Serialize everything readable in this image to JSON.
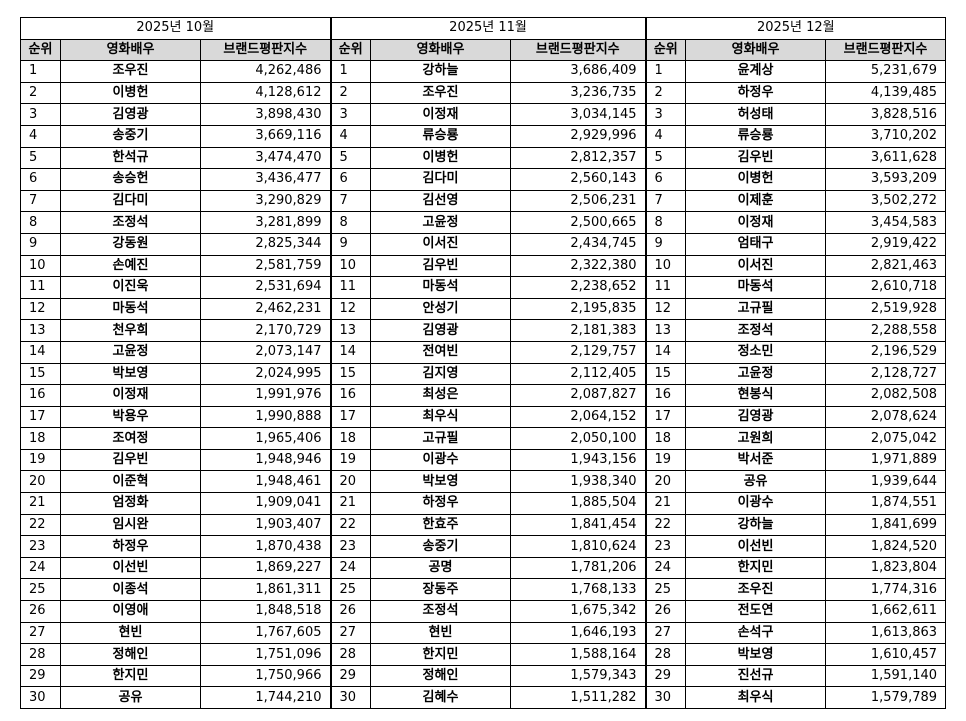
{
  "tables": [
    {
      "title": "2025년 10월",
      "columns": [
        "순위",
        "영화배우",
        "브랜드평판지수"
      ],
      "rows": [
        [
          1,
          "조우진",
          "4,262,486"
        ],
        [
          2,
          "이병헌",
          "4,128,612"
        ],
        [
          3,
          "김영광",
          "3,898,430"
        ],
        [
          4,
          "송중기",
          "3,669,116"
        ],
        [
          5,
          "한석규",
          "3,474,470"
        ],
        [
          6,
          "송승헌",
          "3,436,477"
        ],
        [
          7,
          "김다미",
          "3,290,829"
        ],
        [
          8,
          "조정석",
          "3,281,899"
        ],
        [
          9,
          "강동원",
          "2,825,344"
        ],
        [
          10,
          "손예진",
          "2,581,759"
        ],
        [
          11,
          "이진욱",
          "2,531,694"
        ],
        [
          12,
          "마동석",
          "2,462,231"
        ],
        [
          13,
          "천우희",
          "2,170,729"
        ],
        [
          14,
          "고윤정",
          "2,073,147"
        ],
        [
          15,
          "박보영",
          "2,024,995"
        ],
        [
          16,
          "이정재",
          "1,991,976"
        ],
        [
          17,
          "박용우",
          "1,990,888"
        ],
        [
          18,
          "조여정",
          "1,965,406"
        ],
        [
          19,
          "김우빈",
          "1,948,946"
        ],
        [
          20,
          "이준혁",
          "1,948,461"
        ],
        [
          21,
          "엄정화",
          "1,909,041"
        ],
        [
          22,
          "임시완",
          "1,903,407"
        ],
        [
          23,
          "하정우",
          "1,870,438"
        ],
        [
          24,
          "이선빈",
          "1,869,227"
        ],
        [
          25,
          "이종석",
          "1,861,311"
        ],
        [
          26,
          "이영애",
          "1,848,518"
        ],
        [
          27,
          "현빈",
          "1,767,605"
        ],
        [
          28,
          "정해인",
          "1,751,096"
        ],
        [
          29,
          "한지민",
          "1,750,966"
        ],
        [
          30,
          "공유",
          "1,744,210"
        ]
      ]
    },
    {
      "title": "2025년 11월",
      "columns": [
        "순위",
        "영화배우",
        "브랜드평판지수"
      ],
      "rows": [
        [
          1,
          "강하늘",
          "3,686,409"
        ],
        [
          2,
          "조우진",
          "3,236,735"
        ],
        [
          3,
          "이정재",
          "3,034,145"
        ],
        [
          4,
          "류승룡",
          "2,929,996"
        ],
        [
          5,
          "이병헌",
          "2,812,357"
        ],
        [
          6,
          "김다미",
          "2,560,143"
        ],
        [
          7,
          "김선영",
          "2,506,231"
        ],
        [
          8,
          "고윤정",
          "2,500,665"
        ],
        [
          9,
          "이서진",
          "2,434,745"
        ],
        [
          10,
          "김우빈",
          "2,322,380"
        ],
        [
          11,
          "마동석",
          "2,238,652"
        ],
        [
          12,
          "안성기",
          "2,195,835"
        ],
        [
          13,
          "김영광",
          "2,181,383"
        ],
        [
          14,
          "전여빈",
          "2,129,757"
        ],
        [
          15,
          "김지영",
          "2,112,405"
        ],
        [
          16,
          "최성은",
          "2,087,827"
        ],
        [
          17,
          "최우식",
          "2,064,152"
        ],
        [
          18,
          "고규필",
          "2,050,100"
        ],
        [
          19,
          "이광수",
          "1,943,156"
        ],
        [
          20,
          "박보영",
          "1,938,340"
        ],
        [
          21,
          "하정우",
          "1,885,504"
        ],
        [
          22,
          "한효주",
          "1,841,454"
        ],
        [
          23,
          "송중기",
          "1,810,624"
        ],
        [
          24,
          "공명",
          "1,781,206"
        ],
        [
          25,
          "장동주",
          "1,768,133"
        ],
        [
          26,
          "조정석",
          "1,675,342"
        ],
        [
          27,
          "현빈",
          "1,646,193"
        ],
        [
          28,
          "한지민",
          "1,588,164"
        ],
        [
          29,
          "정해인",
          "1,579,343"
        ],
        [
          30,
          "김혜수",
          "1,511,282"
        ]
      ]
    },
    {
      "title": "2025년 12월",
      "columns": [
        "순위",
        "영화배우",
        "브랜드평판지수"
      ],
      "rows": [
        [
          1,
          "윤계상",
          "5,231,679"
        ],
        [
          2,
          "하정우",
          "4,139,485"
        ],
        [
          3,
          "허성태",
          "3,828,516"
        ],
        [
          4,
          "류승룡",
          "3,710,202"
        ],
        [
          5,
          "김우빈",
          "3,611,628"
        ],
        [
          6,
          "이병헌",
          "3,593,209"
        ],
        [
          7,
          "이제훈",
          "3,502,272"
        ],
        [
          8,
          "이정재",
          "3,454,583"
        ],
        [
          9,
          "엄태구",
          "2,919,422"
        ],
        [
          10,
          "이서진",
          "2,821,463"
        ],
        [
          11,
          "마동석",
          "2,610,718"
        ],
        [
          12,
          "고규필",
          "2,519,928"
        ],
        [
          13,
          "조정석",
          "2,288,558"
        ],
        [
          14,
          "정소민",
          "2,196,529"
        ],
        [
          15,
          "고윤정",
          "2,128,727"
        ],
        [
          16,
          "현봉식",
          "2,082,508"
        ],
        [
          17,
          "김영광",
          "2,078,624"
        ],
        [
          18,
          "고원희",
          "2,075,042"
        ],
        [
          19,
          "박서준",
          "1,971,889"
        ],
        [
          20,
          "공유",
          "1,939,644"
        ],
        [
          21,
          "이광수",
          "1,874,551"
        ],
        [
          22,
          "강하늘",
          "1,841,699"
        ],
        [
          23,
          "이선빈",
          "1,824,520"
        ],
        [
          24,
          "한지민",
          "1,823,804"
        ],
        [
          25,
          "조우진",
          "1,774,316"
        ],
        [
          26,
          "전도연",
          "1,662,611"
        ],
        [
          27,
          "손석구",
          "1,613,863"
        ],
        [
          28,
          "박보영",
          "1,610,457"
        ],
        [
          29,
          "진선규",
          "1,591,140"
        ],
        [
          30,
          "최우식",
          "1,579,789"
        ]
      ]
    }
  ]
}
